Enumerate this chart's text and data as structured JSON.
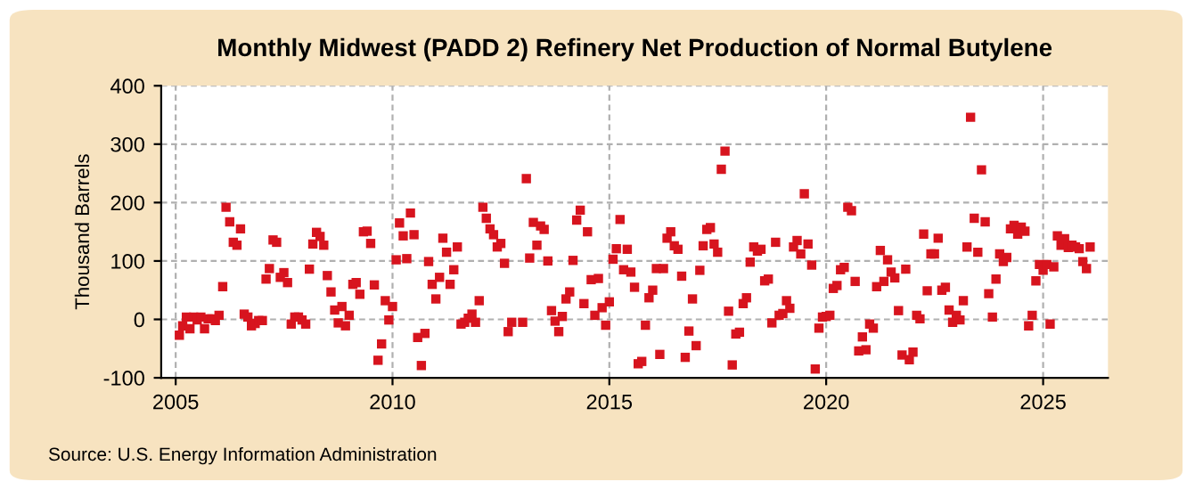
{
  "chart_data": {
    "type": "scatter",
    "title": "Monthly Midwest (PADD 2) Refinery Net Production of Normal Butylene",
    "ylabel": "Thousand Barrels",
    "annotations": [
      "Source: U.S. Energy Information Administration"
    ],
    "x": [
      "2005-02",
      "2005-03",
      "2005-04",
      "2005-05",
      "2005-06",
      "2005-07",
      "2005-08",
      "2005-09",
      "2005-10",
      "2005-11",
      "2005-12",
      "2006-01",
      "2006-02",
      "2006-03",
      "2006-04",
      "2006-05",
      "2006-06",
      "2006-07",
      "2006-08",
      "2006-09",
      "2006-10",
      "2006-11",
      "2006-12",
      "2007-01",
      "2007-02",
      "2007-03",
      "2007-04",
      "2007-05",
      "2007-06",
      "2007-07",
      "2007-08",
      "2007-09",
      "2007-10",
      "2007-11",
      "2007-12",
      "2008-01",
      "2008-02",
      "2008-03",
      "2008-04",
      "2008-05",
      "2008-06",
      "2008-07",
      "2008-08",
      "2008-09",
      "2008-10",
      "2008-11",
      "2008-12",
      "2009-01",
      "2009-02",
      "2009-03",
      "2009-04",
      "2009-05",
      "2009-06",
      "2009-07",
      "2009-08",
      "2009-09",
      "2009-10",
      "2009-11",
      "2009-12",
      "2010-01",
      "2010-02",
      "2010-03",
      "2010-04",
      "2010-05",
      "2010-06",
      "2010-07",
      "2010-08",
      "2010-09",
      "2010-10",
      "2010-11",
      "2010-12",
      "2011-01",
      "2011-02",
      "2011-03",
      "2011-04",
      "2011-05",
      "2011-06",
      "2011-07",
      "2011-08",
      "2011-09",
      "2011-10",
      "2011-11",
      "2011-12",
      "2012-01",
      "2012-02",
      "2012-03",
      "2012-04",
      "2012-05",
      "2012-06",
      "2012-07",
      "2012-08",
      "2012-09",
      "2012-10",
      "2013-01",
      "2013-02",
      "2013-03",
      "2013-04",
      "2013-05",
      "2013-06",
      "2013-07",
      "2013-08",
      "2013-09",
      "2013-10",
      "2013-11",
      "2013-12",
      "2014-01",
      "2014-02",
      "2014-03",
      "2014-04",
      "2014-05",
      "2014-06",
      "2014-07",
      "2014-08",
      "2014-09",
      "2014-10",
      "2014-11",
      "2014-12",
      "2015-01",
      "2015-02",
      "2015-03",
      "2015-04",
      "2015-05",
      "2015-06",
      "2015-07",
      "2015-08",
      "2015-09",
      "2015-10",
      "2015-11",
      "2015-12",
      "2016-01",
      "2016-02",
      "2016-03",
      "2016-04",
      "2016-05",
      "2016-06",
      "2016-07",
      "2016-08",
      "2016-09",
      "2016-10",
      "2016-11",
      "2016-12",
      "2017-01",
      "2017-02",
      "2017-03",
      "2017-04",
      "2017-05",
      "2017-06",
      "2017-07",
      "2017-08",
      "2017-09",
      "2017-10",
      "2017-11",
      "2017-12",
      "2018-01",
      "2018-02",
      "2018-03",
      "2018-04",
      "2018-05",
      "2018-06",
      "2018-07",
      "2018-08",
      "2018-09",
      "2018-10",
      "2018-11",
      "2018-12",
      "2019-01",
      "2019-02",
      "2019-03",
      "2019-04",
      "2019-05",
      "2019-06",
      "2019-07",
      "2019-08",
      "2019-09",
      "2019-10",
      "2019-11",
      "2019-12",
      "2020-01",
      "2020-02",
      "2020-03",
      "2020-04",
      "2020-05",
      "2020-06",
      "2020-07",
      "2020-08",
      "2020-09",
      "2020-10",
      "2020-11",
      "2020-12",
      "2021-01",
      "2021-02",
      "2021-03",
      "2021-04",
      "2021-05",
      "2021-06",
      "2021-07",
      "2021-08",
      "2021-09",
      "2021-10",
      "2021-11",
      "2021-12",
      "2022-01",
      "2022-02",
      "2022-03",
      "2022-04",
      "2022-05",
      "2022-06",
      "2022-07",
      "2022-08",
      "2022-09",
      "2022-10",
      "2022-11",
      "2022-12",
      "2023-01",
      "2023-02",
      "2023-03",
      "2023-04",
      "2023-05",
      "2023-06",
      "2023-07",
      "2023-08",
      "2023-09",
      "2023-10",
      "2023-11",
      "2023-12",
      "2024-01",
      "2024-02",
      "2024-03",
      "2024-04",
      "2024-05",
      "2024-06",
      "2024-07",
      "2024-08",
      "2024-09",
      "2024-10",
      "2024-11",
      "2024-12",
      "2025-01",
      "2025-02",
      "2025-03",
      "2025-04",
      "2025-05",
      "2025-06",
      "2025-07",
      "2025-08",
      "2025-09",
      "2025-10",
      "2025-11",
      "2025-12",
      "2026-01",
      "2026-02"
    ],
    "series": [
      {
        "color": "#d7141e",
        "values": [
          -27,
          -11,
          4,
          -16,
          4,
          -1,
          4,
          -16,
          1,
          1,
          -2,
          7,
          56,
          192,
          167,
          132,
          127,
          155,
          9,
          4,
          -11,
          -7,
          -2,
          -2,
          69,
          87,
          136,
          132,
          72,
          80,
          63,
          -8,
          4,
          4,
          -1,
          -8,
          86,
          129,
          149,
          142,
          127,
          75,
          47,
          16,
          -6,
          22,
          -11,
          7,
          60,
          63,
          43,
          150,
          151,
          130,
          59,
          -70,
          -42,
          32,
          -1,
          22,
          102,
          165,
          143,
          104,
          182,
          145,
          -31,
          -79,
          -24,
          99,
          60,
          35,
          72,
          139,
          115,
          60,
          85,
          124,
          -8,
          -5,
          2,
          9,
          -5,
          32,
          192,
          173,
          155,
          145,
          124,
          130,
          96,
          -21,
          -5,
          -5,
          241,
          105,
          166,
          127,
          160,
          154,
          100,
          15,
          -3,
          -21,
          5,
          35,
          47,
          101,
          170,
          187,
          27,
          150,
          68,
          7,
          70,
          20,
          -10,
          30,
          103,
          121,
          171,
          85,
          120,
          81,
          55,
          -76,
          -72,
          -10,
          37,
          50,
          87,
          -60,
          87,
          139,
          150,
          126,
          120,
          74,
          -65,
          -20,
          35,
          -45,
          84,
          126,
          154,
          157,
          129,
          115,
          257,
          288,
          14,
          -78,
          -25,
          -22,
          27,
          37,
          98,
          124,
          117,
          120,
          66,
          69,
          -6,
          132,
          7,
          10,
          32,
          19,
          124,
          135,
          112,
          215,
          129,
          93,
          -85,
          -15,
          4,
          5,
          7,
          53,
          58,
          85,
          89,
          192,
          186,
          65,
          -54,
          -30,
          -52,
          -8,
          -15,
          56,
          118,
          65,
          102,
          81,
          71,
          15,
          -61,
          86,
          -69,
          -56,
          7,
          1,
          146,
          49,
          112,
          112,
          139,
          50,
          55,
          16,
          -5,
          7,
          -1,
          32,
          124,
          346,
          173,
          115,
          256,
          167,
          44,
          4,
          69,
          112,
          99,
          106,
          155,
          161,
          146,
          158,
          151,
          -11,
          7,
          66,
          94,
          84,
          94,
          -8,
          90,
          143,
          127,
          138,
          123,
          127,
          124,
          121,
          99,
          87,
          124
        ]
      }
    ],
    "marker": "square",
    "grid": true,
    "xlim": [
      "2004-09",
      "2026-07"
    ],
    "xticks": [
      "2005",
      "2010",
      "2015",
      "2020",
      "2025"
    ],
    "ylim": [
      -100,
      400
    ],
    "yticks": [
      -100,
      0,
      100,
      200,
      300,
      400
    ]
  }
}
